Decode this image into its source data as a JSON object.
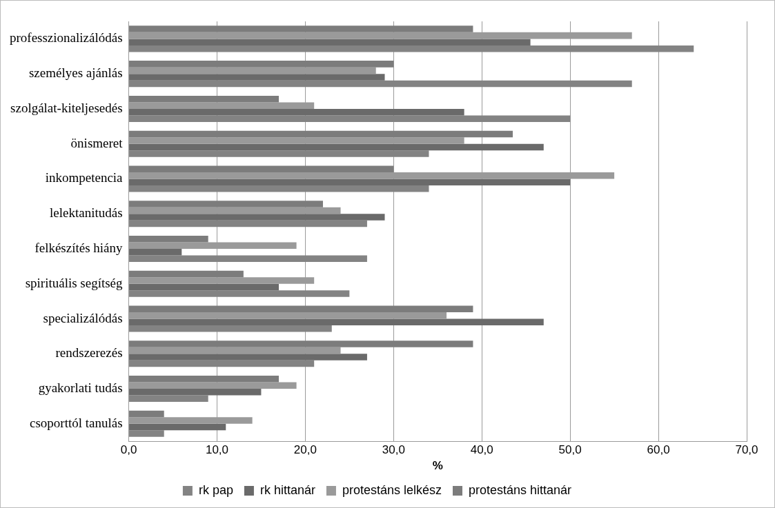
{
  "chart_data": {
    "type": "bar",
    "orientation": "horizontal",
    "xlabel": "%",
    "categories": [
      "professzionalizálódás",
      "személyes ajánlás",
      "szolgálat-kiteljesedés",
      "önismeret",
      "inkompetencia",
      "lelektanitudás",
      "felkészítés hiány",
      "spirituális segítség",
      "specializálódás",
      "rendszerezés",
      "gyakorlati tudás",
      "csoporttól tanulás"
    ],
    "series": [
      {
        "name": "protestáns hittanár",
        "color": "#7c7c7c",
        "values": [
          39,
          30,
          17,
          43.5,
          30,
          22,
          9,
          13,
          39,
          39,
          17,
          4
        ]
      },
      {
        "name": "protestáns lelkész",
        "color": "#9a9a9a",
        "values": [
          57,
          28,
          21,
          38,
          55,
          24,
          19,
          21,
          36,
          24,
          19,
          14
        ]
      },
      {
        "name": "rk hittanár",
        "color": "#6a6a6a",
        "values": [
          45.5,
          29,
          38,
          47,
          50,
          29,
          6,
          17,
          47,
          27,
          15,
          11
        ]
      },
      {
        "name": "rk pap",
        "color": "#838383",
        "values": [
          64,
          57,
          50,
          34,
          34,
          27,
          27,
          25,
          23,
          21,
          9,
          4
        ]
      }
    ],
    "xlim": [
      0,
      70
    ],
    "xticks": [
      {
        "value": 0,
        "label": "0,0"
      },
      {
        "value": 10,
        "label": "10,0"
      },
      {
        "value": 20,
        "label": "20,0"
      },
      {
        "value": 30,
        "label": "30,0"
      },
      {
        "value": 40,
        "label": "40,0"
      },
      {
        "value": 50,
        "label": "50,0"
      },
      {
        "value": 60,
        "label": "60,0"
      },
      {
        "value": 70,
        "label": "70,0"
      }
    ],
    "grid": "x",
    "legend": "bottom"
  }
}
